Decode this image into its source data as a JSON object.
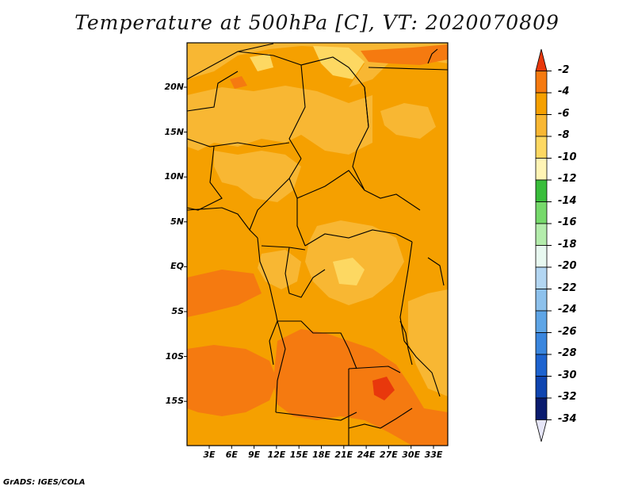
{
  "title": "Temperature at 500hPa [C], VT: 2020070809",
  "footer": "GrADS: IGES/COLA",
  "lat_labels": [
    "20N",
    "15N",
    "10N",
    "5N",
    "EQ",
    "5S",
    "10S",
    "15S"
  ],
  "lon_labels": [
    "3E",
    "6E",
    "9E",
    "12E",
    "15E",
    "18E",
    "21E",
    "24E",
    "27E",
    "30E",
    "33E"
  ],
  "colorbar": {
    "labels": [
      "-2",
      "-4",
      "-6",
      "-8",
      "-10",
      "-12",
      "-14",
      "-16",
      "-18",
      "-20",
      "-22",
      "-24",
      "-26",
      "-28",
      "-30",
      "-32",
      "-34"
    ],
    "colors": [
      "#e8380c",
      "#f57a10",
      "#f5a000",
      "#f8b733",
      "#fdd862",
      "#fff4b5",
      "#39bd3b",
      "#76d96b",
      "#b4ecac",
      "#e8f8f0",
      "#b3d6f2",
      "#8dc1ec",
      "#5ea5e6",
      "#3a86de",
      "#1d63cf",
      "#0f45b0",
      "#0a1b6e",
      "#e6e6f8"
    ]
  },
  "colors": {
    "background_field": "#f5a000",
    "warm_field": "#f57a10",
    "cool_field": "#f8b733",
    "coolest_field": "#fdd862",
    "warmest_field": "#e8380c",
    "boundaries": "#000000"
  }
}
